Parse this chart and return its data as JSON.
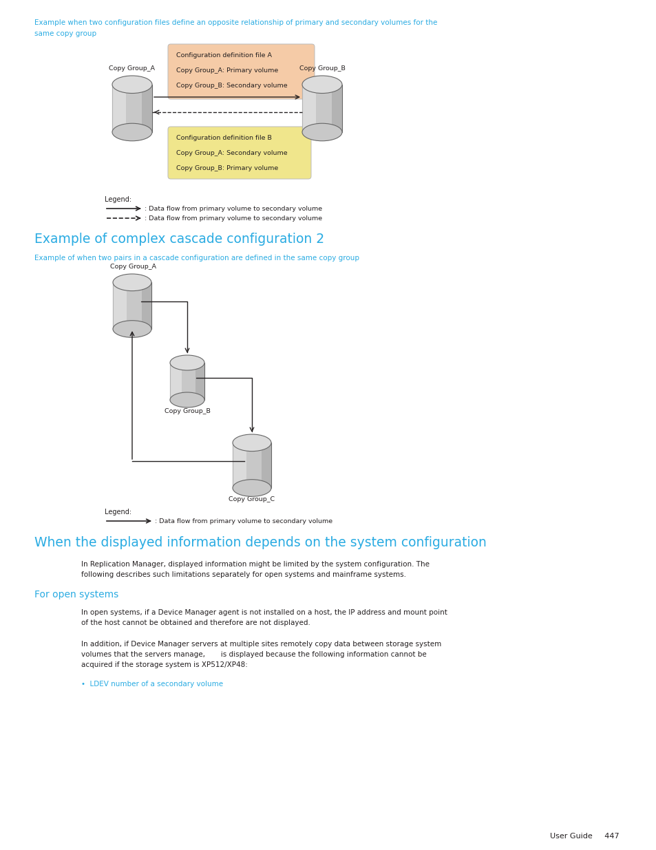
{
  "bg_color": "#ffffff",
  "cyan_color": "#29ABE2",
  "black_color": "#231F20",
  "box_a_color": "#F5CBA7",
  "box_b_color": "#F0E68C",
  "page_width": 9.54,
  "page_height": 12.35,
  "section1_line1": "Example when two configuration files define an opposite relationship of primary and secondary volumes for the",
  "section1_line2": "same copy group",
  "box_a_lines": [
    "Configuration definition file A",
    "Copy Group_A: Primary volume",
    "Copy Group_B: Secondary volume"
  ],
  "box_b_lines": [
    "Configuration definition file B",
    "Copy Group_A: Secondary volume",
    "Copy Group_B: Primary volume"
  ],
  "cyl_a_label": "Copy Group_A",
  "cyl_b_label": "Copy Group_B",
  "legend1_solid_text": ": Data flow from primary volume to secondary volume",
  "legend1_dashed_text": ": Data flow from primary volume to secondary volume",
  "section2_title": "Example of complex cascade configuration 2",
  "section2_subtitle": "Example of when two pairs in a cascade configuration are defined in the same copy group",
  "cascade_cyl_a": "Copy Group_A",
  "cascade_cyl_b": "Copy Group_B",
  "cascade_cyl_c": "Copy Group_C",
  "legend2_solid_text": ": Data flow from primary volume to secondary volume",
  "section3_title": "When the displayed information depends on the system configuration",
  "section3_para1_l1": "In Replication Manager, displayed information might be limited by the system configuration. The",
  "section3_para1_l2": "following describes such limitations separately for open systems and mainframe systems.",
  "section3_sub": "For open systems",
  "section3_para2_l1": "In open systems, if a Device Manager agent is not installed on a host, the IP address and mount point",
  "section3_para2_l2": "of the host cannot be obtained and therefore are not displayed.",
  "section3_para3_l1": "In addition, if Device Manager servers at multiple sites remotely copy data between storage system",
  "section3_para3_l2": "volumes that the servers manage,       is displayed because the following information cannot be",
  "section3_para3_l3": "acquired if the storage system is XP512/XP48:",
  "section3_bullet": "LDEV number of a secondary volume",
  "footer": "User Guide     447"
}
